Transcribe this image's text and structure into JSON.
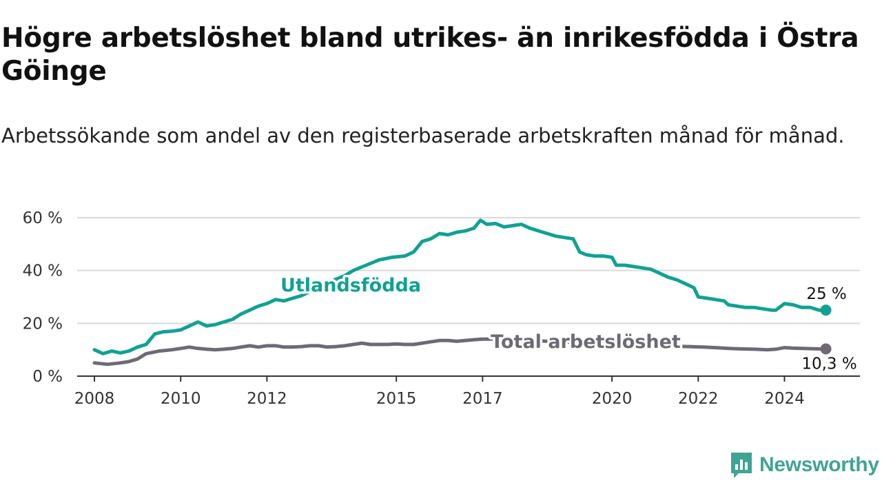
{
  "header": {
    "title": "Högre arbetslöshet bland utrikes- än inrikesfödda i Östra Göinge",
    "subtitle": "Arbetssökande som andel av den registerbaserade arbetskraften månad för månad."
  },
  "brand": {
    "name": "Newsworthy",
    "color": "#41a393"
  },
  "chart_data": {
    "type": "line",
    "grid": "horizontal",
    "y_ticks": [
      0,
      20,
      40,
      60
    ],
    "y_tick_labels": [
      "0 %",
      "20 %",
      "40 %",
      "60 %"
    ],
    "ylim": [
      0,
      60
    ],
    "x_ticks": [
      2008,
      2010,
      2012,
      2015,
      2017,
      2020,
      2022,
      2024
    ],
    "x_tick_labels": [
      "2008",
      "2010",
      "2012",
      "2015",
      "2017",
      "2020",
      "2022",
      "2024"
    ],
    "xlim": [
      2007.6,
      2025.75
    ],
    "series": [
      {
        "name": "Utlandsfödda",
        "color": "#11a192",
        "end_label": "25 %",
        "points": [
          [
            2008.0,
            10
          ],
          [
            2008.2,
            8.5
          ],
          [
            2008.4,
            9.5
          ],
          [
            2008.6,
            8.8
          ],
          [
            2008.8,
            9.5
          ],
          [
            2009.0,
            11
          ],
          [
            2009.2,
            12
          ],
          [
            2009.4,
            16
          ],
          [
            2009.6,
            16.8
          ],
          [
            2009.8,
            17
          ],
          [
            2010.0,
            17.5
          ],
          [
            2010.2,
            19
          ],
          [
            2010.4,
            20.5
          ],
          [
            2010.6,
            19
          ],
          [
            2010.8,
            19.5
          ],
          [
            2011.0,
            20.5
          ],
          [
            2011.2,
            21.5
          ],
          [
            2011.4,
            23.5
          ],
          [
            2011.6,
            25
          ],
          [
            2011.8,
            26.5
          ],
          [
            2012.0,
            27.5
          ],
          [
            2012.2,
            29
          ],
          [
            2012.4,
            28.5
          ],
          [
            2012.6,
            29.5
          ],
          [
            2012.8,
            30.5
          ],
          [
            2013.0,
            32
          ],
          [
            2013.2,
            33.5
          ],
          [
            2013.5,
            36
          ],
          [
            2013.8,
            38
          ],
          [
            2014.0,
            40
          ],
          [
            2014.3,
            42
          ],
          [
            2014.6,
            44
          ],
          [
            2014.9,
            45
          ],
          [
            2015.2,
            45.5
          ],
          [
            2015.4,
            47
          ],
          [
            2015.6,
            51
          ],
          [
            2015.8,
            52
          ],
          [
            2016.0,
            54
          ],
          [
            2016.2,
            53.5
          ],
          [
            2016.4,
            54.5
          ],
          [
            2016.6,
            55
          ],
          [
            2016.8,
            56
          ],
          [
            2016.95,
            59
          ],
          [
            2017.1,
            57.5
          ],
          [
            2017.3,
            57.8
          ],
          [
            2017.5,
            56.5
          ],
          [
            2017.7,
            57
          ],
          [
            2017.9,
            57.5
          ],
          [
            2018.1,
            56
          ],
          [
            2018.3,
            55
          ],
          [
            2018.5,
            54
          ],
          [
            2018.7,
            53
          ],
          [
            2018.9,
            52.5
          ],
          [
            2019.1,
            52
          ],
          [
            2019.25,
            47
          ],
          [
            2019.4,
            46
          ],
          [
            2019.6,
            45.5
          ],
          [
            2019.8,
            45.5
          ],
          [
            2020.0,
            45
          ],
          [
            2020.1,
            42
          ],
          [
            2020.3,
            42
          ],
          [
            2020.5,
            41.5
          ],
          [
            2020.7,
            41
          ],
          [
            2020.9,
            40.5
          ],
          [
            2021.1,
            39
          ],
          [
            2021.3,
            37.5
          ],
          [
            2021.5,
            36.5
          ],
          [
            2021.7,
            35
          ],
          [
            2021.9,
            33.5
          ],
          [
            2022.0,
            30
          ],
          [
            2022.2,
            29.5
          ],
          [
            2022.4,
            29
          ],
          [
            2022.6,
            28.5
          ],
          [
            2022.7,
            27
          ],
          [
            2022.9,
            26.5
          ],
          [
            2023.1,
            26
          ],
          [
            2023.3,
            26
          ],
          [
            2023.5,
            25.5
          ],
          [
            2023.7,
            25
          ],
          [
            2023.8,
            25
          ],
          [
            2024.0,
            27.5
          ],
          [
            2024.2,
            27
          ],
          [
            2024.4,
            26
          ],
          [
            2024.6,
            26
          ],
          [
            2024.8,
            25
          ],
          [
            2024.96,
            25
          ]
        ]
      },
      {
        "name": "Total arbetslöshet",
        "color": "#6d6a75",
        "end_label": "10,3 %",
        "points": [
          [
            2008.0,
            5
          ],
          [
            2008.3,
            4.5
          ],
          [
            2008.6,
            5
          ],
          [
            2008.8,
            5.5
          ],
          [
            2009.0,
            6.5
          ],
          [
            2009.2,
            8.5
          ],
          [
            2009.5,
            9.5
          ],
          [
            2009.8,
            10
          ],
          [
            2010.0,
            10.5
          ],
          [
            2010.2,
            11
          ],
          [
            2010.4,
            10.5
          ],
          [
            2010.6,
            10.2
          ],
          [
            2010.8,
            10
          ],
          [
            2011.0,
            10.2
          ],
          [
            2011.2,
            10.5
          ],
          [
            2011.4,
            11
          ],
          [
            2011.6,
            11.5
          ],
          [
            2011.8,
            11
          ],
          [
            2012.0,
            11.5
          ],
          [
            2012.2,
            11.5
          ],
          [
            2012.4,
            11
          ],
          [
            2012.6,
            11
          ],
          [
            2012.8,
            11.2
          ],
          [
            2013.0,
            11.5
          ],
          [
            2013.2,
            11.5
          ],
          [
            2013.4,
            11
          ],
          [
            2013.6,
            11.2
          ],
          [
            2013.8,
            11.5
          ],
          [
            2014.0,
            12
          ],
          [
            2014.2,
            12.5
          ],
          [
            2014.4,
            12
          ],
          [
            2014.6,
            12
          ],
          [
            2014.8,
            12
          ],
          [
            2015.0,
            12.2
          ],
          [
            2015.2,
            12
          ],
          [
            2015.4,
            12
          ],
          [
            2015.6,
            12.5
          ],
          [
            2015.8,
            13
          ],
          [
            2016.0,
            13.5
          ],
          [
            2016.2,
            13.5
          ],
          [
            2016.4,
            13.2
          ],
          [
            2016.6,
            13.5
          ],
          [
            2016.8,
            13.8
          ],
          [
            2017.0,
            14
          ],
          [
            2017.3,
            14
          ],
          [
            2017.6,
            13.8
          ],
          [
            2017.9,
            13.6
          ],
          [
            2018.2,
            13.4
          ],
          [
            2018.5,
            13.2
          ],
          [
            2018.8,
            13
          ],
          [
            2019.1,
            12.8
          ],
          [
            2019.4,
            12.6
          ],
          [
            2019.7,
            12.4
          ],
          [
            2020.0,
            12.2
          ],
          [
            2020.3,
            12
          ],
          [
            2020.6,
            11.8
          ],
          [
            2020.9,
            11.6
          ],
          [
            2021.2,
            11.4
          ],
          [
            2021.5,
            11.3
          ],
          [
            2021.8,
            11.2
          ],
          [
            2022.1,
            11
          ],
          [
            2022.4,
            10.8
          ],
          [
            2022.7,
            10.5
          ],
          [
            2023.0,
            10.3
          ],
          [
            2023.3,
            10.2
          ],
          [
            2023.6,
            10
          ],
          [
            2023.8,
            10.2
          ],
          [
            2024.0,
            10.8
          ],
          [
            2024.2,
            10.6
          ],
          [
            2024.4,
            10.5
          ],
          [
            2024.6,
            10.4
          ],
          [
            2024.8,
            10.3
          ],
          [
            2024.96,
            10.3
          ]
        ]
      }
    ]
  }
}
